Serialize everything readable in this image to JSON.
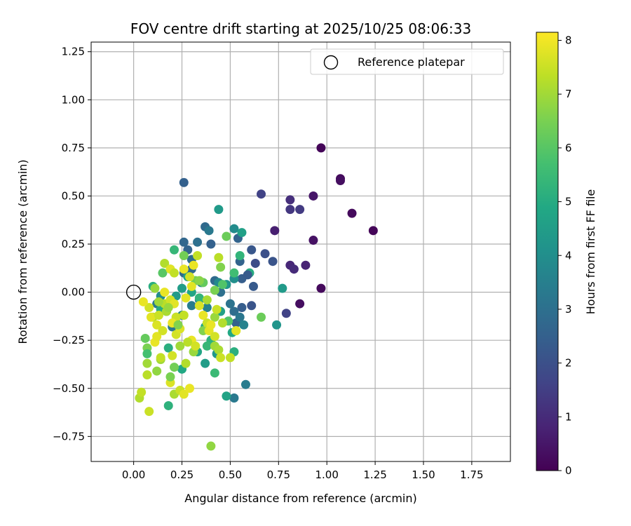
{
  "chart_data": {
    "type": "scatter",
    "title": "FOV centre drift starting at 2025/10/25 08:06:33",
    "xlabel": "Angular distance from reference (arcmin)",
    "ylabel": "Rotation from reference (arcmin)",
    "xlim": [
      -0.22,
      1.95
    ],
    "ylim": [
      -0.88,
      1.3
    ],
    "x_ticks": [
      0.0,
      0.25,
      0.5,
      0.75,
      1.0,
      1.25,
      1.5,
      1.75
    ],
    "x_tick_labels": [
      "0.00",
      "0.25",
      "0.50",
      "0.75",
      "1.00",
      "1.25",
      "1.50",
      "1.75"
    ],
    "y_ticks": [
      -0.75,
      -0.5,
      -0.25,
      0.0,
      0.25,
      0.5,
      0.75,
      1.0,
      1.25
    ],
    "y_tick_labels": [
      "−0.75",
      "−0.50",
      "−0.25",
      "0.00",
      "0.25",
      "0.50",
      "0.75",
      "1.00",
      "1.25"
    ],
    "grid": true,
    "legend": {
      "placement": "top-right",
      "entries": [
        "Reference platepar"
      ]
    },
    "reference_point": {
      "x": 0.0,
      "y": 0.0,
      "name": "Reference platepar"
    },
    "colorbar": {
      "label": "Hours from first FF file",
      "colormap": "viridis",
      "range": [
        0,
        8.15
      ],
      "ticks": [
        0,
        1,
        2,
        3,
        4,
        5,
        6,
        7,
        8
      ],
      "tick_labels": [
        "0",
        "1",
        "2",
        "3",
        "4",
        "5",
        "6",
        "7",
        "8"
      ]
    },
    "points": [
      [
        0.97,
        0.75,
        0.1
      ],
      [
        1.07,
        0.59,
        0.2
      ],
      [
        1.07,
        0.58,
        0.3
      ],
      [
        1.13,
        0.41,
        0.2
      ],
      [
        1.24,
        0.32,
        0.1
      ],
      [
        0.93,
        0.5,
        0.5
      ],
      [
        0.93,
        0.27,
        0.4
      ],
      [
        0.97,
        0.02,
        0.2
      ],
      [
        0.86,
        -0.06,
        0.3
      ],
      [
        0.89,
        0.14,
        0.8
      ],
      [
        0.81,
        0.48,
        1.1
      ],
      [
        0.81,
        0.43,
        1.3
      ],
      [
        0.86,
        0.43,
        1.4
      ],
      [
        0.73,
        0.32,
        0.7
      ],
      [
        0.81,
        0.14,
        0.9
      ],
      [
        0.83,
        0.12,
        1.0
      ],
      [
        0.79,
        -0.11,
        1.6
      ],
      [
        0.66,
        0.51,
        1.6
      ],
      [
        0.72,
        0.16,
        2.1
      ],
      [
        0.61,
        0.22,
        2.2
      ],
      [
        0.62,
        0.03,
        2.3
      ],
      [
        0.61,
        -0.07,
        2.1
      ],
      [
        0.56,
        -0.08,
        2.4
      ],
      [
        0.53,
        -0.16,
        2.5
      ],
      [
        0.26,
        0.57,
        2.5
      ],
      [
        0.55,
        0.16,
        2.6
      ],
      [
        0.56,
        0.07,
        2.4
      ],
      [
        0.54,
        0.28,
        2.6
      ],
      [
        0.26,
        0.26,
        2.7
      ],
      [
        0.28,
        0.22,
        2.6
      ],
      [
        0.3,
        0.17,
        2.9
      ],
      [
        0.3,
        0.12,
        2.8
      ],
      [
        0.26,
        0.1,
        2.8
      ],
      [
        0.33,
        0.26,
        3.0
      ],
      [
        0.37,
        0.34,
        2.8
      ],
      [
        0.4,
        0.25,
        2.5
      ],
      [
        0.42,
        0.06,
        2.8
      ],
      [
        0.45,
        0.0,
        3.0
      ],
      [
        0.5,
        -0.06,
        3.1
      ],
      [
        0.52,
        -0.1,
        2.9
      ],
      [
        0.55,
        -0.13,
        3.2
      ],
      [
        0.57,
        -0.17,
        3.6
      ],
      [
        0.58,
        -0.48,
        3.4
      ],
      [
        0.52,
        -0.55,
        3.3
      ],
      [
        0.39,
        0.32,
        3.3
      ],
      [
        0.44,
        0.43,
        4.4
      ],
      [
        0.52,
        0.33,
        3.9
      ],
      [
        0.56,
        0.31,
        4.6
      ],
      [
        0.6,
        0.1,
        5.0
      ],
      [
        0.52,
        0.07,
        4.0
      ],
      [
        0.48,
        0.04,
        4.2
      ],
      [
        0.44,
        0.05,
        3.8
      ],
      [
        0.35,
        0.05,
        3.5
      ],
      [
        0.38,
        -0.08,
        3.6
      ],
      [
        0.34,
        -0.04,
        3.6
      ],
      [
        0.3,
        -0.07,
        3.4
      ],
      [
        0.25,
        -0.12,
        3.7
      ],
      [
        0.22,
        -0.16,
        3.5
      ],
      [
        0.2,
        -0.18,
        3.2
      ],
      [
        0.12,
        -0.06,
        3.3
      ],
      [
        0.14,
        -0.02,
        3.9
      ],
      [
        0.17,
        -0.1,
        4.3
      ],
      [
        0.22,
        -0.02,
        4.4
      ],
      [
        0.25,
        0.02,
        4.5
      ],
      [
        0.28,
        0.08,
        4.6
      ],
      [
        0.3,
        0.0,
        4.8
      ],
      [
        0.34,
        -0.03,
        5.3
      ],
      [
        0.37,
        -0.18,
        4.8
      ],
      [
        0.4,
        -0.25,
        5.2
      ],
      [
        0.43,
        -0.32,
        4.3
      ],
      [
        0.48,
        -0.54,
        4.7
      ],
      [
        0.37,
        -0.37,
        4.5
      ],
      [
        0.33,
        -0.31,
        4.8
      ],
      [
        0.25,
        -0.4,
        4.9
      ],
      [
        0.18,
        -0.59,
        5.2
      ],
      [
        0.1,
        0.03,
        5.1
      ],
      [
        0.14,
        -0.09,
        5.0
      ],
      [
        0.18,
        -0.29,
        5.1
      ],
      [
        0.22,
        -0.13,
        5.6
      ],
      [
        0.38,
        -0.28,
        5.4
      ],
      [
        0.42,
        -0.42,
        5.5
      ],
      [
        0.52,
        -0.31,
        5.1
      ],
      [
        0.51,
        -0.21,
        4.9
      ],
      [
        0.45,
        -0.1,
        4.6
      ],
      [
        0.49,
        -0.15,
        5.9
      ],
      [
        0.55,
        0.19,
        5.3
      ],
      [
        0.52,
        0.1,
        5.6
      ],
      [
        0.48,
        0.29,
        6.3
      ],
      [
        0.46,
        0.04,
        5.9
      ],
      [
        0.21,
        0.22,
        5.4
      ],
      [
        0.15,
        0.1,
        6.0
      ],
      [
        0.19,
        0.12,
        6.2
      ],
      [
        0.26,
        0.19,
        6.4
      ],
      [
        0.32,
        0.06,
        6.4
      ],
      [
        0.36,
        0.05,
        6.2
      ],
      [
        0.42,
        0.01,
        6.5
      ],
      [
        0.45,
        0.13,
        6.6
      ],
      [
        0.44,
        0.18,
        7.3
      ],
      [
        0.53,
        -0.2,
        7.0
      ],
      [
        0.66,
        -0.13,
        6.3
      ],
      [
        0.74,
        -0.17,
        4.2
      ],
      [
        0.77,
        0.02,
        4.4
      ],
      [
        0.42,
        -0.13,
        6.9
      ],
      [
        0.42,
        -0.28,
        7.0
      ],
      [
        0.36,
        -0.2,
        6.6
      ],
      [
        0.44,
        -0.3,
        7.1
      ],
      [
        0.5,
        -0.34,
        7.4
      ],
      [
        0.45,
        -0.34,
        7.5
      ],
      [
        0.4,
        -0.8,
        6.8
      ],
      [
        0.21,
        -0.39,
        6.4
      ],
      [
        0.12,
        -0.41,
        6.8
      ],
      [
        0.14,
        -0.35,
        7.0
      ],
      [
        0.07,
        -0.29,
        6.5
      ],
      [
        0.06,
        -0.24,
        6.2
      ],
      [
        0.07,
        -0.32,
        5.7
      ],
      [
        0.03,
        -0.55,
        7.2
      ],
      [
        0.04,
        -0.52,
        7.4
      ],
      [
        0.07,
        -0.43,
        7.3
      ],
      [
        0.08,
        -0.62,
        7.5
      ],
      [
        0.07,
        -0.37,
        7.0
      ],
      [
        0.1,
        -0.13,
        7.2
      ],
      [
        0.08,
        -0.08,
        7.6
      ],
      [
        0.05,
        -0.05,
        7.9
      ],
      [
        0.09,
        -0.13,
        7.8
      ],
      [
        0.12,
        -0.17,
        7.7
      ],
      [
        0.13,
        -0.12,
        7.5
      ],
      [
        0.16,
        -0.06,
        7.3
      ],
      [
        0.17,
        -0.1,
        7.1
      ],
      [
        0.19,
        -0.04,
        7.6
      ],
      [
        0.21,
        -0.06,
        7.8
      ],
      [
        0.22,
        -0.13,
        7.5
      ],
      [
        0.2,
        -0.16,
        7.9
      ],
      [
        0.22,
        -0.22,
        7.6
      ],
      [
        0.24,
        -0.19,
        7.7
      ],
      [
        0.26,
        -0.12,
        7.4
      ],
      [
        0.27,
        -0.03,
        7.8
      ],
      [
        0.26,
        0.12,
        7.9
      ],
      [
        0.29,
        0.08,
        7.6
      ],
      [
        0.3,
        0.03,
        7.8
      ],
      [
        0.31,
        0.14,
        7.9
      ],
      [
        0.33,
        0.19,
        7.4
      ],
      [
        0.34,
        -0.07,
        7.7
      ],
      [
        0.36,
        -0.12,
        7.9
      ],
      [
        0.38,
        -0.16,
        7.5
      ],
      [
        0.39,
        -0.2,
        7.8
      ],
      [
        0.42,
        -0.23,
        7.6
      ],
      [
        0.3,
        -0.25,
        7.9
      ],
      [
        0.28,
        -0.26,
        7.3
      ],
      [
        0.24,
        -0.28,
        7.0
      ],
      [
        0.27,
        -0.37,
        7.2
      ],
      [
        0.2,
        -0.33,
        7.6
      ],
      [
        0.19,
        -0.47,
        7.7
      ],
      [
        0.19,
        -0.44,
        6.5
      ],
      [
        0.21,
        -0.53,
        7.1
      ],
      [
        0.24,
        -0.51,
        7.5
      ],
      [
        0.26,
        -0.53,
        7.8
      ],
      [
        0.29,
        -0.5,
        7.9
      ],
      [
        0.14,
        -0.34,
        7.4
      ],
      [
        0.11,
        -0.26,
        7.9
      ],
      [
        0.12,
        -0.23,
        7.8
      ],
      [
        0.15,
        -0.2,
        7.6
      ],
      [
        0.16,
        0.15,
        7.2
      ],
      [
        0.19,
        0.12,
        7.8
      ],
      [
        0.21,
        0.1,
        7.4
      ],
      [
        0.16,
        0.0,
        7.9
      ],
      [
        0.11,
        0.02,
        6.9
      ],
      [
        0.13,
        -0.05,
        7.0
      ],
      [
        0.18,
        -0.08,
        6.9
      ],
      [
        0.23,
        -0.17,
        6.6
      ],
      [
        0.4,
        -0.17,
        7.9
      ],
      [
        0.43,
        -0.09,
        7.5
      ],
      [
        0.46,
        -0.16,
        7.2
      ],
      [
        0.38,
        -0.04,
        7.1
      ],
      [
        0.34,
        0.06,
        6.7
      ],
      [
        0.31,
        -0.31,
        6.9
      ],
      [
        0.32,
        -0.28,
        7.6
      ],
      [
        0.53,
        -0.2,
        7.8
      ],
      [
        0.59,
        0.09,
        2.3
      ],
      [
        0.63,
        0.15,
        1.9
      ],
      [
        0.68,
        0.2,
        2.0
      ]
    ]
  }
}
